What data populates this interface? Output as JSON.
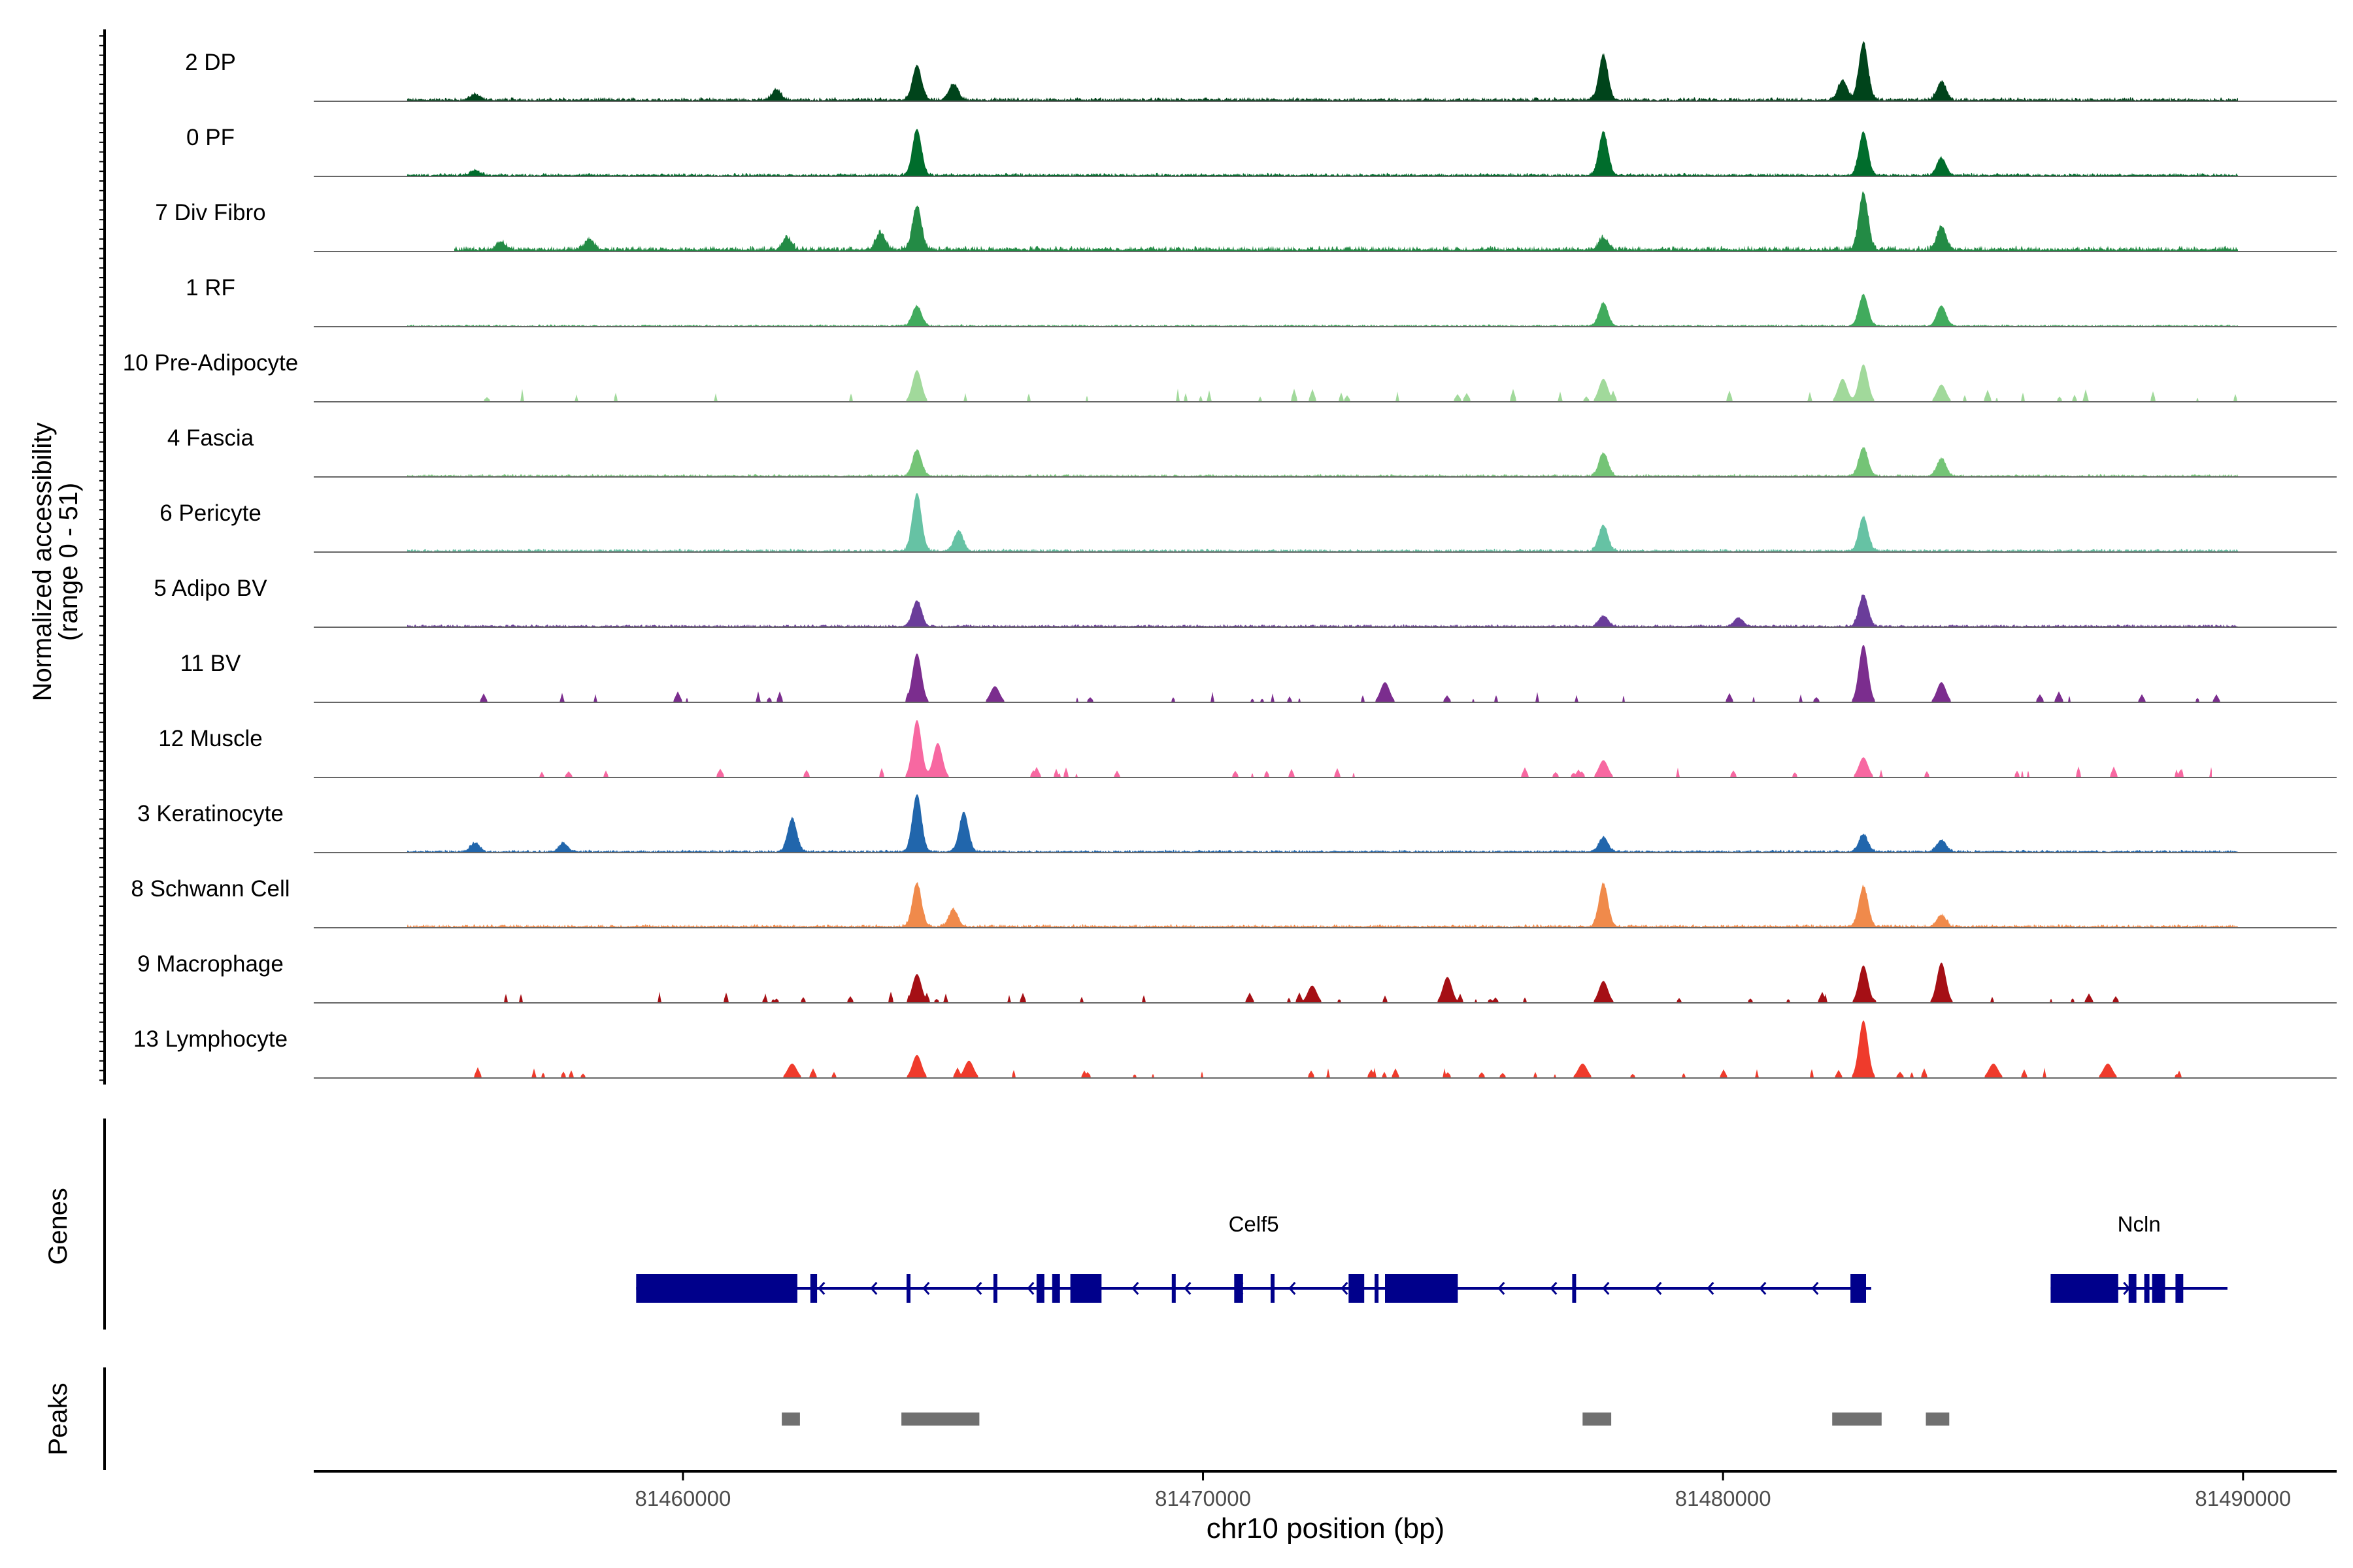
{
  "chart_data": {
    "type": "area",
    "title": "",
    "ylabel_line1": "Normalized accessibility",
    "ylabel_line2": "(range 0 - 51)",
    "y_range": [
      0,
      51
    ],
    "xlabel": "chr10 position (bp)",
    "xlim": [
      81452900,
      81491800
    ],
    "x_ticks": [
      81460000,
      81470000,
      81480000,
      81490000
    ],
    "x_tick_labels": [
      "81460000",
      "81470000",
      "81480000",
      "81490000"
    ],
    "genes_label": "Genes",
    "peaks_label": "Peaks",
    "tracks": [
      {
        "name": "2 DP",
        "color": "#00441b",
        "mode": "dense",
        "range": [
          81454700,
          81489900
        ],
        "base": 0.07,
        "peaks": [
          {
            "x": 81464500,
            "h": 0.6
          },
          {
            "x": 81465200,
            "h": 0.28
          },
          {
            "x": 81477700,
            "h": 0.78
          },
          {
            "x": 81482700,
            "h": 1.0
          },
          {
            "x": 81482300,
            "h": 0.35
          },
          {
            "x": 81484200,
            "h": 0.32
          },
          {
            "x": 81461800,
            "h": 0.18
          },
          {
            "x": 81456000,
            "h": 0.1
          }
        ]
      },
      {
        "name": "0 PF",
        "color": "#006d2c",
        "mode": "dense",
        "range": [
          81454700,
          81489900
        ],
        "base": 0.06,
        "peaks": [
          {
            "x": 81464500,
            "h": 0.8
          },
          {
            "x": 81477700,
            "h": 0.75
          },
          {
            "x": 81482700,
            "h": 0.75
          },
          {
            "x": 81484200,
            "h": 0.3
          },
          {
            "x": 81456000,
            "h": 0.08
          }
        ]
      },
      {
        "name": "7 Div Fibro",
        "color": "#238b45",
        "mode": "dense",
        "range": [
          81455600,
          81489900
        ],
        "base": 0.1,
        "peaks": [
          {
            "x": 81464500,
            "h": 0.75
          },
          {
            "x": 81482700,
            "h": 1.0
          },
          {
            "x": 81484200,
            "h": 0.4
          },
          {
            "x": 81477700,
            "h": 0.2
          },
          {
            "x": 81463800,
            "h": 0.3
          },
          {
            "x": 81462000,
            "h": 0.2
          },
          {
            "x": 81456500,
            "h": 0.14
          },
          {
            "x": 81458200,
            "h": 0.18
          }
        ]
      },
      {
        "name": "1 RF",
        "color": "#41ab5d",
        "mode": "dense",
        "range": [
          81454700,
          81489900
        ],
        "base": 0.04,
        "peaks": [
          {
            "x": 81464500,
            "h": 0.35
          },
          {
            "x": 81477700,
            "h": 0.4
          },
          {
            "x": 81482700,
            "h": 0.55
          },
          {
            "x": 81484200,
            "h": 0.35
          }
        ]
      },
      {
        "name": "10 Pre-Adipocyte",
        "color": "#a1d99b",
        "mode": "sparse",
        "range": [
          81454700,
          81489900
        ],
        "base": 0.18,
        "peaks": [
          {
            "x": 81464500,
            "h": 0.55
          },
          {
            "x": 81477700,
            "h": 0.4
          },
          {
            "x": 81482700,
            "h": 0.65
          },
          {
            "x": 81482300,
            "h": 0.4
          },
          {
            "x": 81484200,
            "h": 0.3
          }
        ]
      },
      {
        "name": "4 Fascia",
        "color": "#74c476",
        "mode": "dense",
        "range": [
          81454700,
          81489900
        ],
        "base": 0.05,
        "peaks": [
          {
            "x": 81464500,
            "h": 0.45
          },
          {
            "x": 81477700,
            "h": 0.4
          },
          {
            "x": 81482700,
            "h": 0.5
          },
          {
            "x": 81484200,
            "h": 0.3
          }
        ]
      },
      {
        "name": "6 Pericyte",
        "color": "#66c2a4",
        "mode": "dense",
        "range": [
          81454700,
          81489900
        ],
        "base": 0.06,
        "peaks": [
          {
            "x": 81464500,
            "h": 1.0
          },
          {
            "x": 81465300,
            "h": 0.35
          },
          {
            "x": 81477700,
            "h": 0.45
          },
          {
            "x": 81482700,
            "h": 0.6
          }
        ]
      },
      {
        "name": "5 Adipo BV",
        "color": "#6a3d9a",
        "mode": "dense",
        "range": [
          81454700,
          81489900
        ],
        "base": 0.05,
        "peaks": [
          {
            "x": 81464500,
            "h": 0.45
          },
          {
            "x": 81482700,
            "h": 0.55
          },
          {
            "x": 81477700,
            "h": 0.18
          },
          {
            "x": 81480300,
            "h": 0.15
          }
        ]
      },
      {
        "name": "11 BV",
        "color": "#7b2d8e",
        "mode": "sparse",
        "range": [
          81454700,
          81489900
        ],
        "base": 0.15,
        "peaks": [
          {
            "x": 81464500,
            "h": 0.85
          },
          {
            "x": 81482700,
            "h": 1.0
          },
          {
            "x": 81473500,
            "h": 0.35
          },
          {
            "x": 81484200,
            "h": 0.35
          },
          {
            "x": 81466000,
            "h": 0.28
          }
        ]
      },
      {
        "name": "12 Muscle",
        "color": "#f768a1",
        "mode": "sparse",
        "range": [
          81455600,
          81489400
        ],
        "base": 0.15,
        "peaks": [
          {
            "x": 81464500,
            "h": 1.0
          },
          {
            "x": 81464900,
            "h": 0.6
          },
          {
            "x": 81482700,
            "h": 0.35
          },
          {
            "x": 81477700,
            "h": 0.3
          }
        ]
      },
      {
        "name": "3 Keratinocyte",
        "color": "#2166ac",
        "mode": "dense",
        "range": [
          81454700,
          81489900
        ],
        "base": 0.05,
        "peaks": [
          {
            "x": 81464500,
            "h": 1.0
          },
          {
            "x": 81465400,
            "h": 0.68
          },
          {
            "x": 81462100,
            "h": 0.58
          },
          {
            "x": 81456000,
            "h": 0.15
          },
          {
            "x": 81457700,
            "h": 0.15
          },
          {
            "x": 81477700,
            "h": 0.25
          },
          {
            "x": 81482700,
            "h": 0.3
          },
          {
            "x": 81484200,
            "h": 0.2
          }
        ]
      },
      {
        "name": "8 Schwann Cell",
        "color": "#f08a4b",
        "mode": "dense",
        "range": [
          81454700,
          81489900
        ],
        "base": 0.06,
        "peaks": [
          {
            "x": 81464500,
            "h": 0.75
          },
          {
            "x": 81465200,
            "h": 0.3
          },
          {
            "x": 81477700,
            "h": 0.75
          },
          {
            "x": 81482700,
            "h": 0.7
          },
          {
            "x": 81484200,
            "h": 0.2
          }
        ]
      },
      {
        "name": "9 Macrophage",
        "color": "#a50f15",
        "mode": "sparse",
        "range": [
          81455500,
          81488600
        ],
        "base": 0.15,
        "peaks": [
          {
            "x": 81464500,
            "h": 0.5
          },
          {
            "x": 81474700,
            "h": 0.45
          },
          {
            "x": 81477700,
            "h": 0.38
          },
          {
            "x": 81482700,
            "h": 0.65
          },
          {
            "x": 81484200,
            "h": 0.7
          },
          {
            "x": 81472100,
            "h": 0.3
          }
        ]
      },
      {
        "name": "13 Lymphocyte",
        "color": "#ef3b2c",
        "mode": "sparse",
        "range": [
          81455600,
          81489100
        ],
        "base": 0.15,
        "peaks": [
          {
            "x": 81482700,
            "h": 1.0
          },
          {
            "x": 81464500,
            "h": 0.4
          },
          {
            "x": 81465500,
            "h": 0.3
          },
          {
            "x": 81477300,
            "h": 0.25
          },
          {
            "x": 81485200,
            "h": 0.25
          },
          {
            "x": 81487400,
            "h": 0.25
          },
          {
            "x": 81462100,
            "h": 0.25
          }
        ]
      }
    ],
    "genes": [
      {
        "name": "Celf5",
        "start": 81459100,
        "end": 81482850,
        "strand": "-",
        "color": "#00008b",
        "exons": [
          [
            81459100,
            81462200
          ],
          [
            81462450,
            81462580
          ],
          [
            81464300,
            81464370
          ],
          [
            81465970,
            81466030
          ],
          [
            81466800,
            81466950
          ],
          [
            81467100,
            81467250
          ],
          [
            81467450,
            81468050
          ],
          [
            81469400,
            81469460
          ],
          [
            81470600,
            81470770
          ],
          [
            81471300,
            81471340
          ],
          [
            81472800,
            81473100
          ],
          [
            81473300,
            81473370
          ],
          [
            81473500,
            81474900
          ],
          [
            81477100,
            81477160
          ],
          [
            81482450,
            81482750
          ]
        ]
      },
      {
        "name": "Ncln",
        "start": 81486300,
        "end": 81489700,
        "strand": "+",
        "color": "#00008b",
        "exons": [
          [
            81486300,
            81487600
          ],
          [
            81487800,
            81487950
          ],
          [
            81488100,
            81488200
          ],
          [
            81488250,
            81488500
          ],
          [
            81488700,
            81488850
          ]
        ]
      }
    ],
    "peaks": [
      {
        "start": 81461900,
        "end": 81462250
      },
      {
        "start": 81464200,
        "end": 81465700
      },
      {
        "start": 81477300,
        "end": 81477850
      },
      {
        "start": 81482100,
        "end": 81483050
      },
      {
        "start": 81483900,
        "end": 81484350
      }
    ],
    "peak_color": "#707070"
  }
}
